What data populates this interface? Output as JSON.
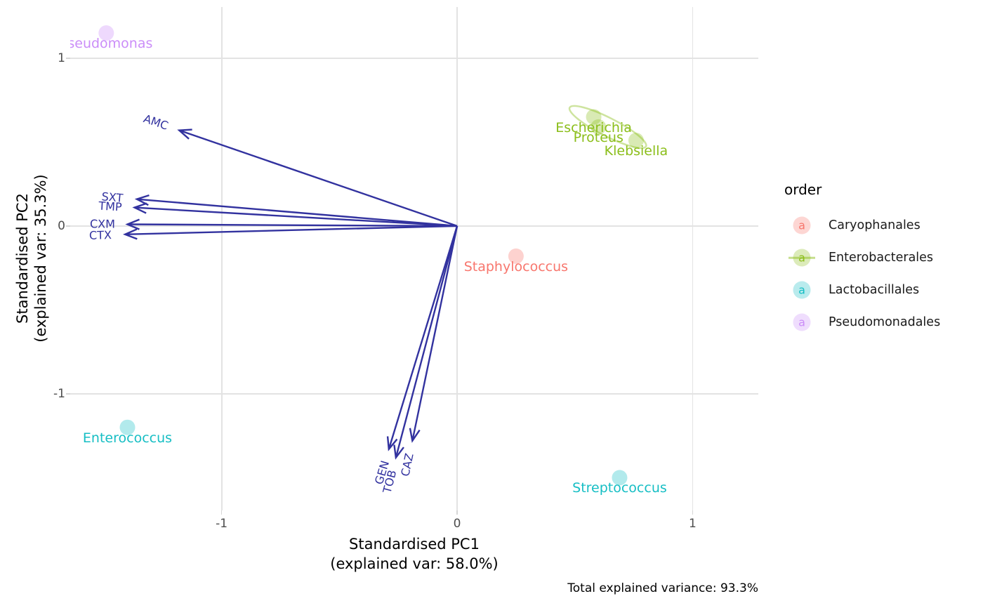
{
  "chart_data": {
    "type": "scatter",
    "subtype": "pca-biplot",
    "xlabel_line1": "Standardised PC1",
    "xlabel_line2": "(explained var: 58.0%)",
    "ylabel_line1": "Standardised PC2",
    "ylabel_line2": "(explained var: 35.3%)",
    "caption": "Total explained variance: 93.3%",
    "xlim": [
      -1.643,
      1.279
    ],
    "ylim": [
      -1.695,
      1.305
    ],
    "x_ticks": [
      {
        "label": "-1",
        "value": -1
      },
      {
        "label": "0",
        "value": 0
      },
      {
        "label": "1",
        "value": 1
      }
    ],
    "y_ticks": [
      {
        "label": "1",
        "value": 1
      },
      {
        "label": "0",
        "value": 0
      },
      {
        "label": "-1",
        "value": -1
      }
    ],
    "grid": true,
    "legend_position": "right",
    "samples": [
      {
        "name": "Pseudomonas",
        "order": "Pseudomonadales",
        "x": -1.49,
        "y": 1.15
      },
      {
        "name": "Escherichia",
        "order": "Enterobacterales",
        "x": 0.58,
        "y": 0.65
      },
      {
        "name": "Proteus",
        "order": "Enterobacterales",
        "x": 0.6,
        "y": 0.59
      },
      {
        "name": "Klebsiella",
        "order": "Enterobacterales",
        "x": 0.76,
        "y": 0.51
      },
      {
        "name": "Staphylococcus",
        "order": "Caryophanales",
        "x": 0.25,
        "y": -0.18
      },
      {
        "name": "Enterococcus",
        "order": "Lactobacillales",
        "x": -1.4,
        "y": -1.2
      },
      {
        "name": "Streptococcus",
        "order": "Lactobacillales",
        "x": 0.69,
        "y": -1.5
      }
    ],
    "loadings": [
      {
        "label": "AMC",
        "x": -1.18,
        "y": 0.57
      },
      {
        "label": "SXT",
        "x": -1.36,
        "y": 0.16
      },
      {
        "label": "TMP",
        "x": -1.37,
        "y": 0.11
      },
      {
        "label": "CXM",
        "x": -1.4,
        "y": 0.01
      },
      {
        "label": "CTX",
        "x": -1.41,
        "y": -0.05
      },
      {
        "label": "GEN",
        "x": -0.29,
        "y": -1.33
      },
      {
        "label": "TOB",
        "x": -0.26,
        "y": -1.38
      },
      {
        "label": "CAZ",
        "x": -0.19,
        "y": -1.28
      }
    ],
    "ellipse": {
      "order": "Enterobacterales",
      "cx": 0.64,
      "cy": 0.59
    }
  },
  "legend": {
    "title": "order",
    "key_glyph": "a",
    "items": [
      {
        "label": "Caryophanales",
        "color": "#F8766D",
        "has_line": false
      },
      {
        "label": "Enterobacterales",
        "color": "#8BBE1A",
        "has_line": true
      },
      {
        "label": "Lactobacillales",
        "color": "#16BEC4",
        "has_line": false
      },
      {
        "label": "Pseudomonadales",
        "color": "#CB8DF8",
        "has_line": false
      }
    ]
  },
  "colors": {
    "arrow": "#32329F",
    "grid": "#E3E3E3",
    "tick_text": "#4D4D4D",
    "tick_mark": "#D6D6D6",
    "axis_title": "#000000",
    "background": "#FFFFFF",
    "orders": {
      "Caryophanales": "#F8766D",
      "Enterobacterales": "#8BBE1A",
      "Lactobacillales": "#16BEC4",
      "Pseudomonadales": "#CB8DF8"
    }
  }
}
